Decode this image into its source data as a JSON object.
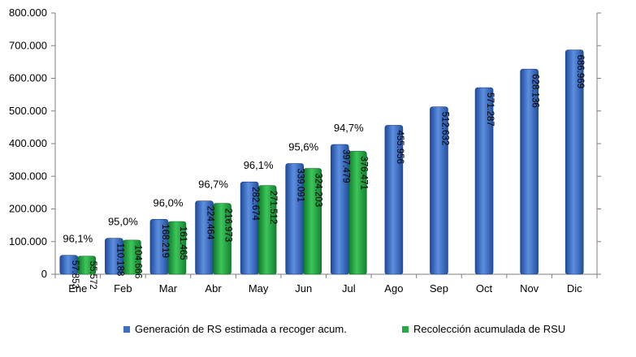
{
  "chart_data": {
    "type": "bar",
    "categories": [
      "Ene",
      "Feb",
      "Mar",
      "Abr",
      "May",
      "Jun",
      "Jul",
      "Ago",
      "Sep",
      "Oct",
      "Nov",
      "Dic"
    ],
    "series": [
      {
        "name": "Generación de RS estimada a recoger acum.",
        "color": "#3a6fc4",
        "values": [
          57853,
          110188,
          168219,
          224464,
          282674,
          339091,
          397479,
          455956,
          512632,
          571287,
          628136,
          686969
        ],
        "labels": [
          "57.853",
          "110.188",
          "168.219",
          "224.464",
          "282.674",
          "339.091",
          "397.479",
          "455.956",
          "512.632",
          "571.287",
          "628.136",
          "686.969"
        ]
      },
      {
        "name": "Recolección acumulada de RSU",
        "color": "#27a844",
        "values": [
          55572,
          104666,
          161465,
          216973,
          271512,
          324203,
          376471,
          null,
          null,
          null,
          null,
          null
        ],
        "labels": [
          "55.572",
          "104.666",
          "161.465",
          "216.973",
          "271.512",
          "324.203",
          "376.471",
          null,
          null,
          null,
          null,
          null
        ]
      }
    ],
    "annotations": [
      "96,1%",
      "95,0%",
      "96,0%",
      "96,7%",
      "96,1%",
      "95,6%",
      "94,7%",
      null,
      null,
      null,
      null,
      null
    ],
    "ylim": [
      0,
      800000
    ],
    "yticks": [
      {
        "value": 0,
        "label": "0"
      },
      {
        "value": 100000,
        "label": "100.000"
      },
      {
        "value": 200000,
        "label": "200.000"
      },
      {
        "value": 300000,
        "label": "300.000"
      },
      {
        "value": 400000,
        "label": "400.000"
      },
      {
        "value": 500000,
        "label": "500.000"
      },
      {
        "value": 600000,
        "label": "600.000"
      },
      {
        "value": 700000,
        "label": "700.000"
      },
      {
        "value": 800000,
        "label": "800.000"
      }
    ],
    "title": "",
    "xlabel": "",
    "ylabel": "",
    "grid": false,
    "legend_position": "bottom"
  }
}
